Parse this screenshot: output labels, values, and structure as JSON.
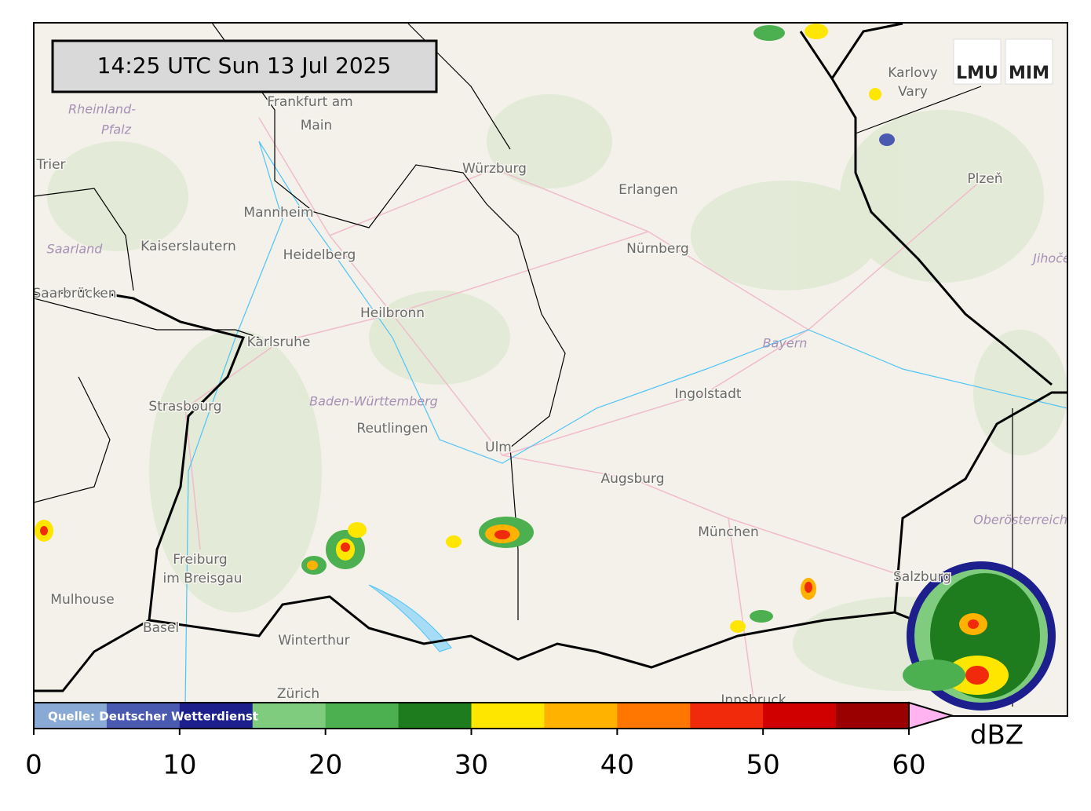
{
  "timestamp": "14:25 UTC  Sun 13 Jul 2025",
  "source": "Quelle: Deutscher Wetterdienst",
  "logos": [
    "LMU",
    "MIM"
  ],
  "cities": [
    "Frankfurt am",
    "Main",
    "Würzburg",
    "Erlangen",
    "Nürnberg",
    "Mannheim",
    "Kaiserslautern",
    "Heidelberg",
    "Trier",
    "Saarbrücken",
    "Karlsruhe",
    "Heilbronn",
    "Ingolstadt",
    "Strasbourg",
    "Reutlingen",
    "Ulm",
    "Augsburg",
    "München",
    "Freiburg",
    "im Breisgau",
    "Mulhouse",
    "Basel",
    "Winterthur",
    "Zürich",
    "Salzburg",
    "Karlovy",
    "Vary",
    "Plzeň",
    "Innsbruck"
  ],
  "regions": [
    "Rheinland-",
    "Pfalz",
    "Saarland",
    "Bayern",
    "Baden-Württemberg",
    "Oberösterreich",
    "Jihoče"
  ],
  "colorbar": {
    "label": "dBZ",
    "lim": [
      0,
      60
    ],
    "ticks": [
      0,
      10,
      20,
      30,
      40,
      50,
      60
    ],
    "colors": [
      "#8aaad6",
      "#4a5ab0",
      "#1c1f8c",
      "#7fcc7f",
      "#4caf50",
      "#1e7b1e",
      "#ffe600",
      "#ffb300",
      "#ff7700",
      "#f02a0a",
      "#d00000",
      "#9a0000"
    ],
    "extend_color": "#ffb3f0"
  }
}
